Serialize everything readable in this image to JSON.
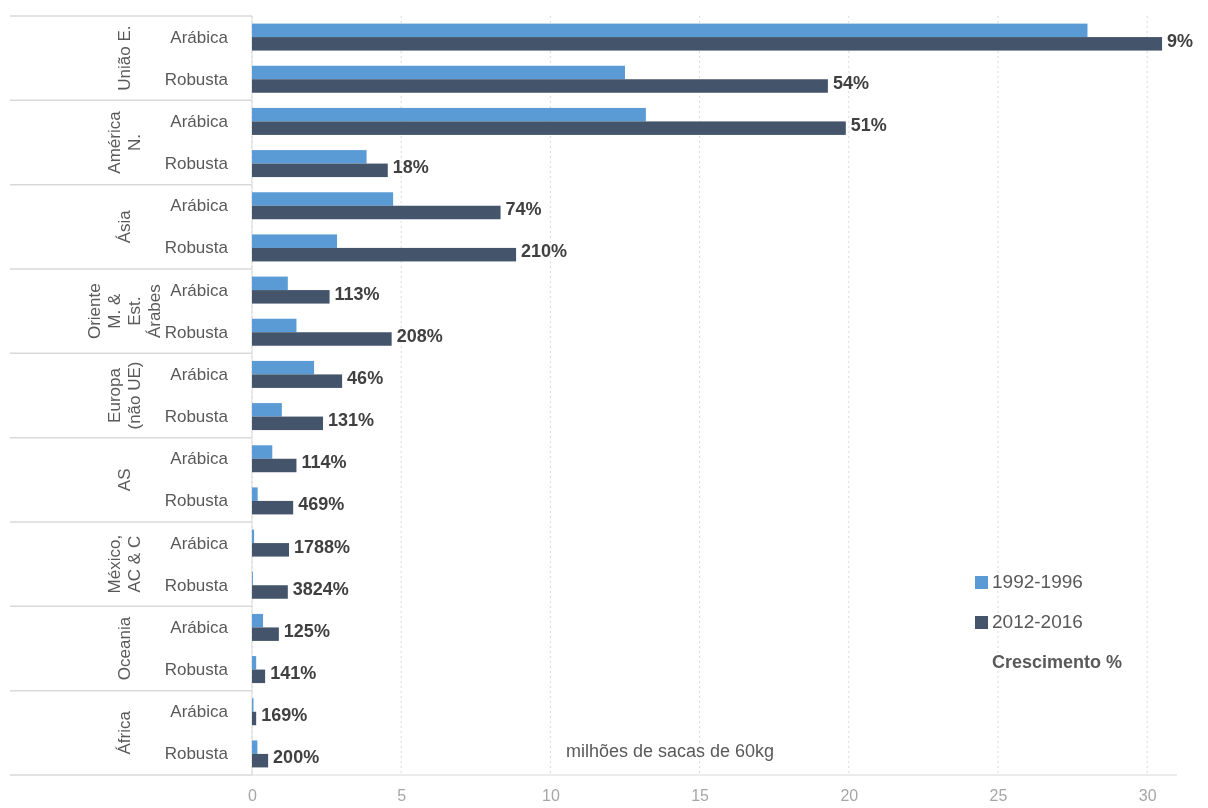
{
  "chart_data": {
    "type": "bar",
    "orientation": "horizontal",
    "xlabel": "milhões de sacas de 60kg",
    "categories": [
      "Arábica",
      "Robusta",
      "Arábica",
      "Robusta",
      "Arábica",
      "Robusta",
      "Arábica",
      "Robusta",
      "Arábica",
      "Robusta",
      "Arábica",
      "Robusta",
      "Arábica",
      "Robusta",
      "Arábica",
      "Robusta",
      "Arábica",
      "Robusta"
    ],
    "series": [
      {
        "name": "1992-1996",
        "color": "#5b9bd5",
        "values": [
          28.0,
          12.5,
          13.2,
          3.84,
          4.73,
          2.85,
          1.2,
          1.49,
          2.08,
          1.0,
          0.68,
          0.19,
          0.07,
          0.03,
          0.37,
          0.14,
          0.05,
          0.18
        ]
      },
      {
        "name": "2012-2016",
        "color": "#44546a",
        "values": [
          30.5,
          19.3,
          19.9,
          4.55,
          8.33,
          8.85,
          2.6,
          4.68,
          3.02,
          2.38,
          1.49,
          1.38,
          1.24,
          1.2,
          0.9,
          0.44,
          0.14,
          0.54
        ]
      }
    ],
    "xlim": [
      0,
      31
    ],
    "xticks": [
      0,
      5,
      10,
      15,
      20,
      25,
      30
    ],
    "grid": "x",
    "legend": "bottom right",
    "annotations": [
      "União E.",
      "América\nN.",
      "Ásia",
      "Oriente\nM. &\nEst.\nÁrabes",
      "Europa\n(não UE)",
      "AS",
      "México,\nAC & C",
      "Oceania",
      "África",
      "9%",
      "54%",
      "51%",
      "18%",
      "74%",
      "210%",
      "113%",
      "208%",
      "46%",
      "131%",
      "114%",
      "469%",
      "1788%",
      "3824%",
      "125%",
      "141%",
      "169%",
      "200%",
      "Crescimento %"
    ]
  }
}
